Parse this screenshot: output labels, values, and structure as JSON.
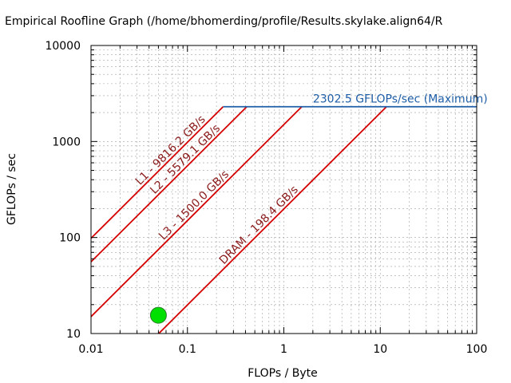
{
  "chart_data": {
    "type": "line",
    "title": "Empirical Roofline Graph (/home/bhomerding/profile/Results.skylake.align64/R",
    "xlabel": "FLOPs / Byte",
    "ylabel": "GFLOPs / sec",
    "xscale": "log",
    "yscale": "log",
    "xlim": [
      0.01,
      100
    ],
    "ylim": [
      10,
      10000
    ],
    "grid": true,
    "xticks": [
      {
        "value": 0.01,
        "label": "0.01"
      },
      {
        "value": 0.1,
        "label": "0.1"
      },
      {
        "value": 1,
        "label": "1"
      },
      {
        "value": 10,
        "label": "10"
      },
      {
        "value": 100,
        "label": "100"
      }
    ],
    "yticks": [
      {
        "value": 10,
        "label": "10"
      },
      {
        "value": 100,
        "label": "100"
      },
      {
        "value": 1000,
        "label": "1000"
      },
      {
        "value": 10000,
        "label": "10000"
      }
    ],
    "peak": {
      "label": "2302.5 GFLOPs/sec (Maximum)",
      "gflops": 2302.5,
      "color": "#1f5fa8"
    },
    "bandwidth_lines": [
      {
        "label": "L1 - 9816.2 GB/s",
        "gbps": 9816.2,
        "color": "#d40000"
      },
      {
        "label": "L2 - 5579.1 GB/s",
        "gbps": 5579.1,
        "color": "#d40000"
      },
      {
        "label": "L3 - 1500.0 GB/s",
        "gbps": 1500.0,
        "color": "#d40000"
      },
      {
        "label": "DRAM - 198.4 GB/s",
        "gbps": 198.4,
        "color": "#d40000"
      }
    ],
    "points": [
      {
        "x": 0.05,
        "y": 15.5,
        "color": "#00e000"
      }
    ]
  }
}
